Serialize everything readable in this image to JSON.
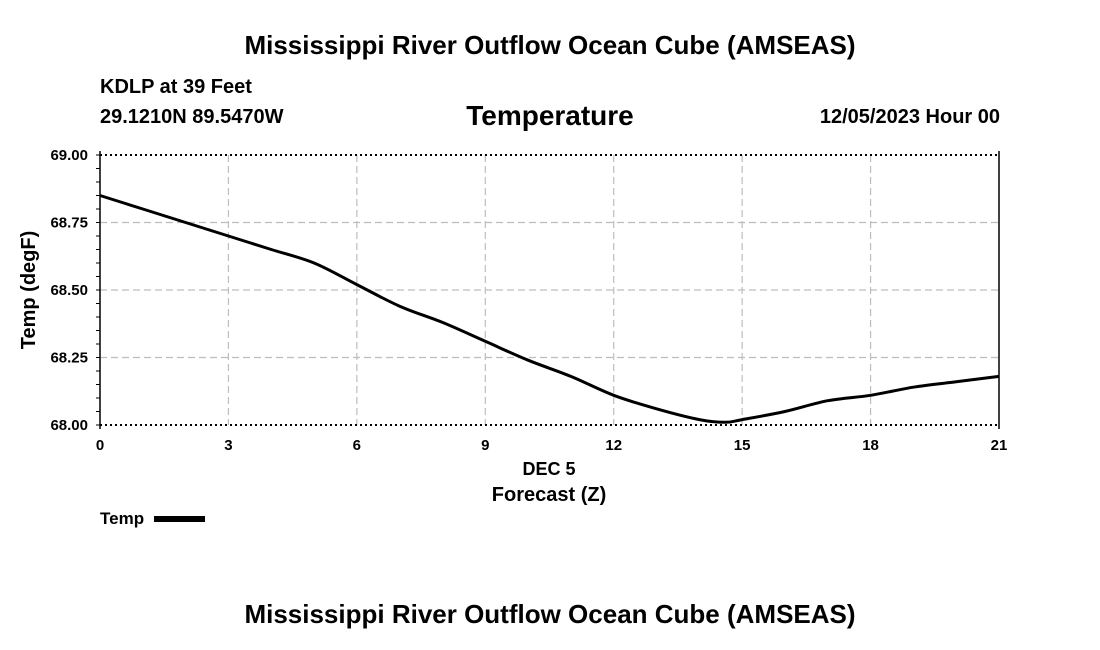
{
  "header": {
    "title": "Mississippi River Outflow Ocean Cube (AMSEAS)",
    "station": "KDLP at 39 Feet",
    "coordinates": "29.1210N  89.5470W",
    "variable": "Temperature",
    "datetime": "12/05/2023 Hour 00"
  },
  "footer": {
    "title": "Mississippi River Outflow Ocean Cube (AMSEAS)"
  },
  "chart_data": {
    "type": "line",
    "title": "Temperature",
    "xlabel": "Forecast (Z)",
    "x_sublabel": "DEC 5",
    "ylabel": "Temp (degF)",
    "xlim": [
      0,
      21
    ],
    "ylim": [
      68.0,
      69.0
    ],
    "x_ticks": [
      0,
      3,
      6,
      9,
      12,
      15,
      18,
      21
    ],
    "x_tick_labels": [
      "0",
      "3",
      "6",
      "9",
      "12",
      "15",
      "18",
      "21"
    ],
    "y_ticks": [
      68.0,
      68.25,
      68.5,
      68.75,
      69.0
    ],
    "y_tick_labels": [
      "68.00",
      "68.25",
      "68.50",
      "68.75",
      "69.00"
    ],
    "grid": true,
    "legend_position": "bottom-left",
    "series": [
      {
        "name": "Temp",
        "color": "#000000",
        "x": [
          0,
          1,
          2,
          3,
          4,
          5,
          6,
          7,
          8,
          9,
          10,
          11,
          12,
          13,
          14,
          14.6,
          15,
          16,
          17,
          18,
          19,
          20,
          21
        ],
        "y": [
          68.85,
          68.8,
          68.75,
          68.7,
          68.65,
          68.6,
          68.52,
          68.44,
          68.38,
          68.31,
          68.24,
          68.18,
          68.11,
          68.06,
          68.02,
          68.01,
          68.02,
          68.05,
          68.09,
          68.11,
          68.14,
          68.16,
          68.18
        ]
      }
    ]
  }
}
